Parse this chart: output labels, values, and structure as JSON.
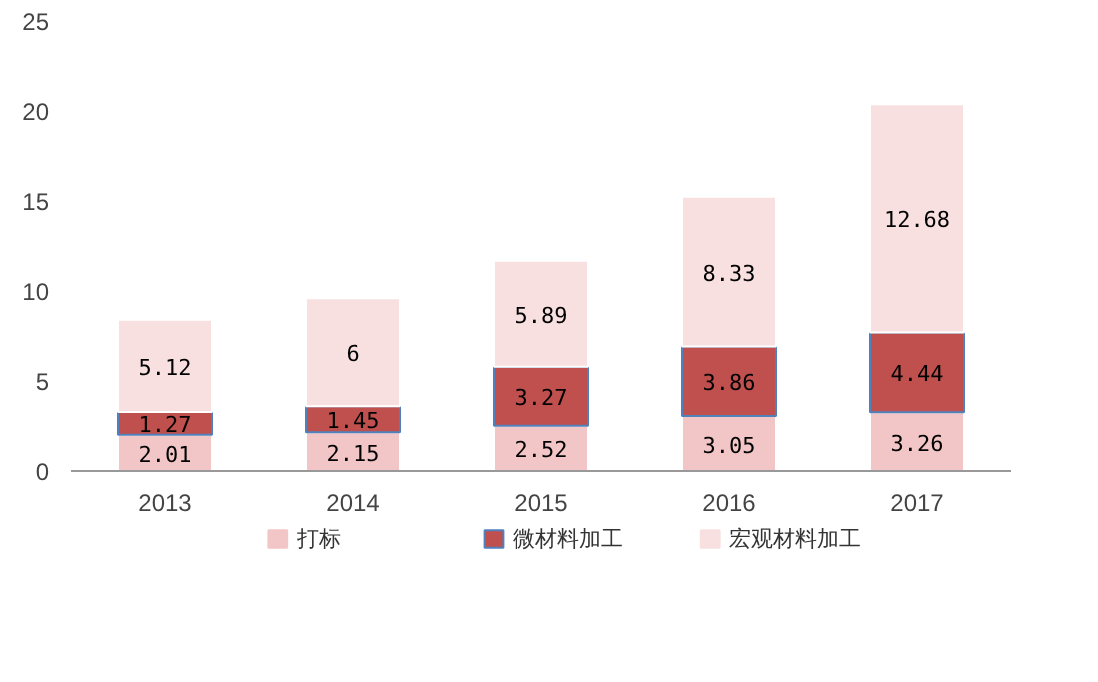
{
  "chart_data": {
    "type": "bar",
    "stacked": true,
    "categories": [
      "2013",
      "2014",
      "2015",
      "2016",
      "2017"
    ],
    "series": [
      {
        "name": "打标",
        "color": "#f2c6c6",
        "values": [
          2.01,
          2.15,
          2.52,
          3.05,
          3.26
        ]
      },
      {
        "name": "微材料加工",
        "color": "#c0504d",
        "values": [
          1.27,
          1.45,
          3.27,
          3.86,
          4.44
        ]
      },
      {
        "name": "宏观材料加工",
        "color": "#f9e0e0",
        "values": [
          5.12,
          6,
          5.89,
          8.33,
          12.68
        ]
      }
    ],
    "ylim": [
      0,
      25
    ],
    "yticks": [
      0,
      5,
      10,
      15,
      20,
      25
    ],
    "data_labels": true,
    "legend": "bottom",
    "grid": false
  }
}
